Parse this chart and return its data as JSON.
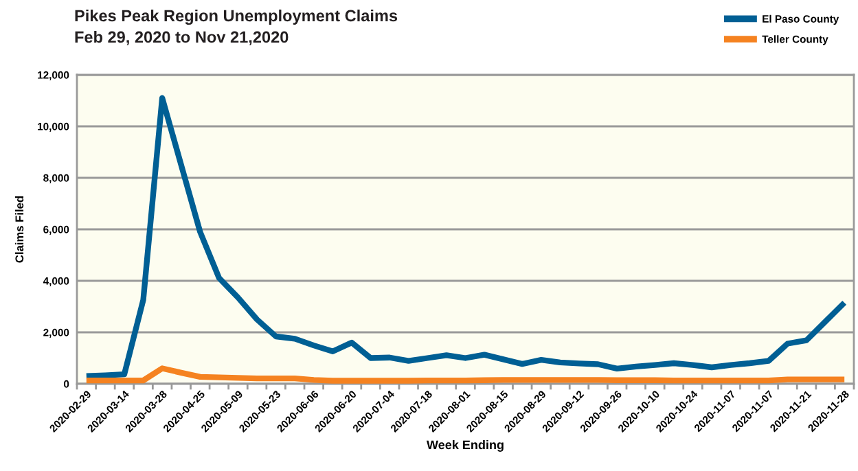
{
  "chart_data": {
    "type": "line",
    "title": "Pikes Peak Region Unemployment Claims",
    "subtitle": "Feb 29, 2020 to Nov 21,2020",
    "xlabel": "Week Ending",
    "ylabel": "Claims Filed",
    "categories": [
      "2020-02-29",
      null,
      "2020-03-14",
      null,
      "2020-03-28",
      null,
      "2020-04-25",
      null,
      "2020-05-09",
      null,
      "2020-05-23",
      null,
      "2020-06-06",
      null,
      "2020-06-20",
      null,
      "2020-07-04",
      null,
      "2020-07-18",
      null,
      "2020-08-01",
      null,
      "2020-08-15",
      null,
      "2020-08-29",
      null,
      "2020-09-12",
      null,
      "2020-09-26",
      null,
      "2020-10-10",
      null,
      "2020-10-24",
      null,
      "2020-11-07",
      null,
      "2020-11-07",
      null,
      "2020-11-21",
      null,
      "2020-11-28"
    ],
    "series": [
      {
        "name": "El Paso County",
        "color": "#005f94",
        "values": [
          300,
          330,
          370,
          3260,
          11100,
          8500,
          5900,
          4110,
          3350,
          2500,
          1840,
          1750,
          1490,
          1260,
          1600,
          1000,
          1020,
          890,
          1000,
          1110,
          1000,
          1130,
          950,
          770,
          930,
          830,
          790,
          760,
          590,
          670,
          730,
          800,
          730,
          640,
          730,
          800,
          890,
          1560,
          1690,
          2420,
          3150
        ]
      },
      {
        "name": "Teller County",
        "color": "#f58220",
        "values": [
          130,
          130,
          130,
          130,
          600,
          430,
          270,
          250,
          230,
          210,
          210,
          210,
          150,
          120,
          120,
          120,
          120,
          120,
          130,
          130,
          130,
          140,
          150,
          150,
          150,
          150,
          150,
          150,
          140,
          140,
          140,
          130,
          130,
          130,
          130,
          130,
          130,
          170,
          170,
          170,
          170
        ]
      }
    ],
    "ylim": [
      0,
      12000
    ],
    "yticks": [
      {
        "value": 0,
        "label": "0"
      },
      {
        "value": 2000,
        "label": "2,000"
      },
      {
        "value": 4000,
        "label": "4,000"
      },
      {
        "value": 6000,
        "label": "6,000"
      },
      {
        "value": 8000,
        "label": "8,000"
      },
      {
        "value": 10000,
        "label": "10,000"
      },
      {
        "value": 12000,
        "label": "12,000"
      }
    ],
    "grid": "y",
    "legend": "top right",
    "marker": "none",
    "line_style": "solid"
  }
}
